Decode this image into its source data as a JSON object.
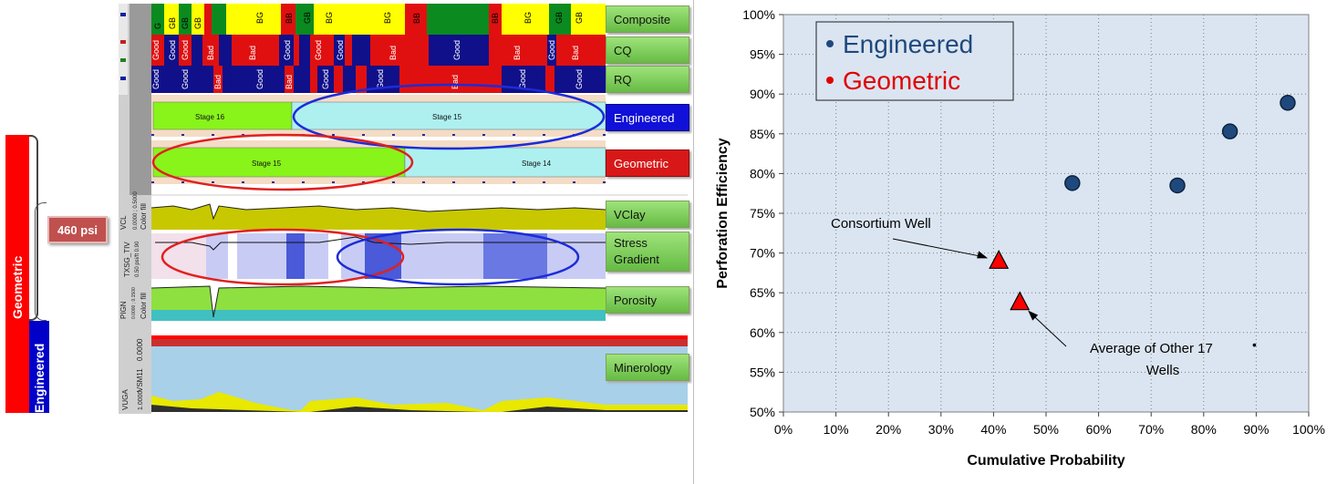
{
  "left_panel": {
    "geometric_label": "Geometric",
    "engineered_label": "Engineered",
    "pressure_label": "460 psi"
  },
  "log_panel": {
    "track_labels": {
      "composite": "Composite",
      "cq": "CQ",
      "rq": "RQ",
      "engineered": "Engineered",
      "geometric": "Geometric",
      "vclay": "VClay",
      "stress_gradient_line1": "Stress",
      "stress_gradient_line2": "Gradient",
      "porosity": "Porosity",
      "minerology": "Minerology"
    },
    "stage_labels": {
      "engineered_stage_a": "Stage 16",
      "engineered_stage_b": "Stage 15",
      "geometric_stage_a": "Stage 15",
      "geometric_stage_b": "Stage 14"
    },
    "curve_headers": {
      "vcl": "VCL",
      "vcl_fill": "Color fill",
      "vcl_range": "0.0000 ; 0.5000",
      "txsg": "TXSG_TIV",
      "txsg_range": "0.50 psi/ft 0.90",
      "pign": "PIGN",
      "pign_fill": "Color fill",
      "pign_range": "0.0000 ; 0.1500",
      "vuga": "VUGA",
      "vsm": "VSM11",
      "vuga_top": "0.0000",
      "vuga_bottom": "1.0000"
    },
    "composite_segments": [
      "G",
      "GB",
      "GB",
      "GB",
      "BG",
      "BB",
      "GB",
      "BG",
      "BG",
      "BB",
      "BB",
      "BG",
      "GB",
      "GB"
    ],
    "quality_words": [
      "Good",
      "Bad"
    ],
    "colors": {
      "green": "#0a8a1f",
      "yellow": "#ffff00",
      "red": "#e01010",
      "navy": "#10108a",
      "lime": "#88f41a",
      "cyan": "#aef0f0",
      "ellipse_red": "#e02020",
      "ellipse_blue": "#1c2cd8"
    }
  },
  "chart_data": {
    "type": "scatter",
    "title": "",
    "xlabel": "Cumulative Probability",
    "ylabel": "Perforation Efficiency",
    "xlim": [
      0,
      100
    ],
    "ylim": [
      50,
      100
    ],
    "x_ticks": [
      "0%",
      "10%",
      "20%",
      "30%",
      "40%",
      "50%",
      "60%",
      "70%",
      "80%",
      "90%",
      "100%"
    ],
    "y_ticks": [
      "50%",
      "55%",
      "60%",
      "65%",
      "70%",
      "75%",
      "80%",
      "85%",
      "90%",
      "95%",
      "100%"
    ],
    "grid": true,
    "legend_position": "top-left",
    "series": [
      {
        "name": "Engineered",
        "color": "#1f497d",
        "marker": "circle",
        "points": [
          {
            "x": 55,
            "y": 78.8
          },
          {
            "x": 75,
            "y": 78.5
          },
          {
            "x": 85,
            "y": 85.3
          },
          {
            "x": 96,
            "y": 88.9
          }
        ]
      },
      {
        "name": "Geometric",
        "color": "#e00000",
        "marker": "triangle",
        "points": [
          {
            "x": 41,
            "y": 69.0
          },
          {
            "x": 45,
            "y": 63.8
          }
        ]
      }
    ],
    "annotations": [
      {
        "text": "Consortium Well",
        "target": {
          "x": 41,
          "y": 69.0
        }
      },
      {
        "text_lines": [
          "Average of Other 17",
          "Wells"
        ],
        "target": {
          "x": 45,
          "y": 63.8
        }
      }
    ],
    "colors": {
      "plot_bg": "#dbe5f1",
      "grid": "#7f7f7f",
      "legend_bg": "#dbe5f1"
    }
  }
}
